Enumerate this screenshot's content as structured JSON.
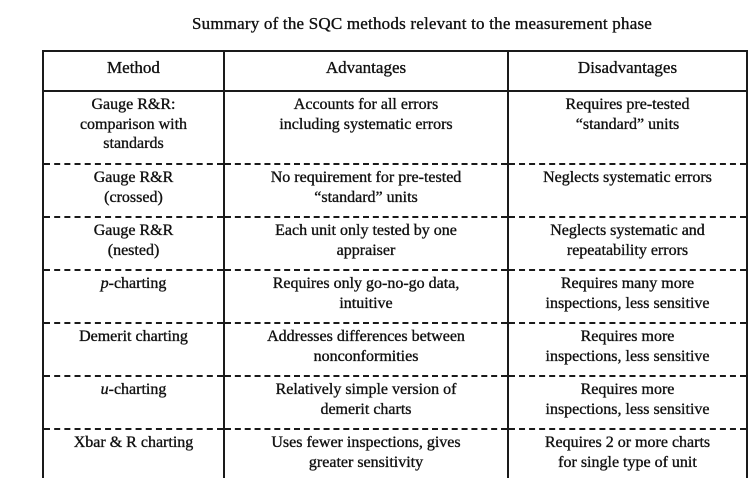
{
  "title": "Summary of the SQC methods relevant to the measurement phase",
  "colors": {
    "text": "#111111",
    "border": "#1a1a1a",
    "background": "#ffffff"
  },
  "table": {
    "headers": [
      "Method",
      "Advantages",
      "Disadvantages"
    ],
    "rows": [
      {
        "method": "Gauge R&R:\ncomparison with\nstandards",
        "advantages": "Accounts for all errors\nincluding systematic errors",
        "disadvantages": "Requires pre-tested\n“standard” units"
      },
      {
        "method": "Gauge R&R\n(crossed)",
        "advantages": "No requirement for pre-tested\n“standard” units",
        "disadvantages": "Neglects systematic errors"
      },
      {
        "method": "Gauge R&R\n(nested)",
        "advantages": "Each unit only tested by one\nappraiser",
        "disadvantages": "Neglects systematic and\nrepeatability errors"
      },
      {
        "method_italic": "p",
        "method": "-charting",
        "advantages": "Requires only go-no-go data,\nintuitive",
        "disadvantages": "Requires many more\ninspections, less sensitive"
      },
      {
        "method": "Demerit charting",
        "advantages": "Addresses differences between\nnonconformities",
        "disadvantages": "Requires more\ninspections, less sensitive"
      },
      {
        "method_italic": "u",
        "method": "-charting",
        "advantages": "Relatively simple version of\ndemerit charts",
        "disadvantages": "Requires more\ninspections, less sensitive"
      },
      {
        "method": "Xbar & R charting",
        "advantages": "Uses fewer inspections, gives\ngreater sensitivity",
        "disadvantages": "Requires 2 or more charts\nfor single type of unit"
      }
    ]
  }
}
